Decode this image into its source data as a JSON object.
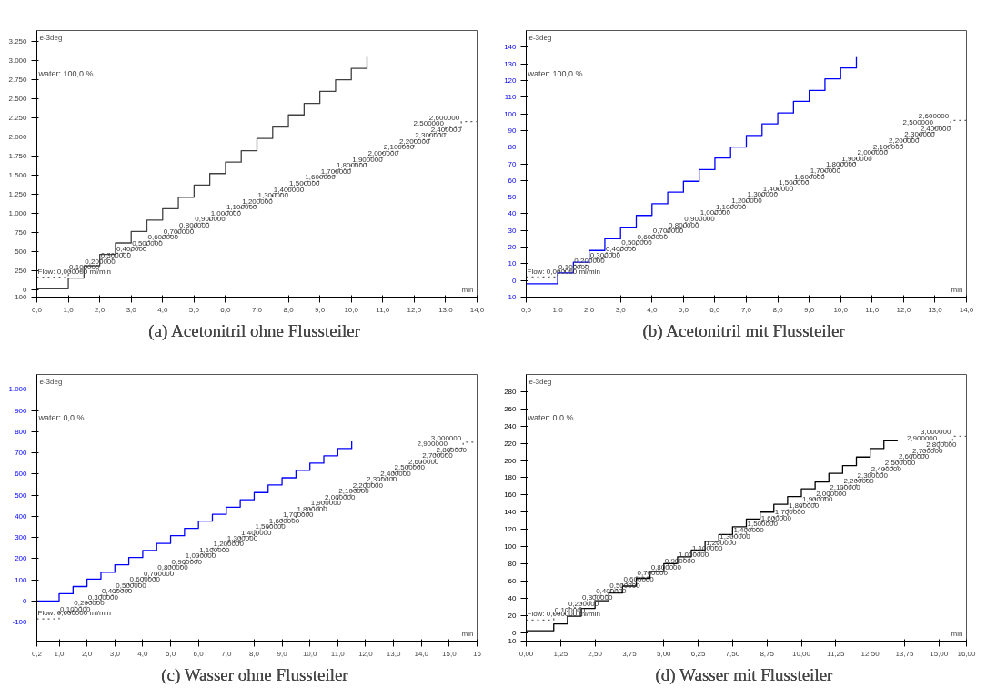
{
  "chart_data": [
    {
      "type": "step",
      "title": "(a)  Acetonitril ohne Flussteiler",
      "xlabel": "min",
      "ylabel": "e-3deg",
      "annotations": [
        "water: 100,0 %"
      ],
      "xlim": [
        0,
        14
      ],
      "ylim": [
        -100,
        3397
      ],
      "xticks": [
        {
          "value": 0,
          "label": "0,0"
        },
        {
          "value": 1,
          "label": "1,0"
        },
        {
          "value": 2,
          "label": "2,0"
        },
        {
          "value": 3,
          "label": "3,0"
        },
        {
          "value": 4,
          "label": "4,0"
        },
        {
          "value": 5,
          "label": "5,0"
        },
        {
          "value": 6,
          "label": "6,0"
        },
        {
          "value": 7,
          "label": "7,0"
        },
        {
          "value": 8,
          "label": "8,0"
        },
        {
          "value": 9,
          "label": "9,0"
        },
        {
          "value": 10,
          "label": "10,0"
        },
        {
          "value": 11,
          "label": "11,0"
        },
        {
          "value": 12,
          "label": "12,0"
        },
        {
          "value": 13,
          "label": "13,0"
        },
        {
          "value": 14,
          "label": "14,0"
        }
      ],
      "yticks": [
        -100,
        0,
        250,
        500,
        750,
        {
          "value": 1000,
          "label": "1.000"
        },
        {
          "value": 1250,
          "label": "1.250"
        },
        {
          "value": 1500,
          "label": "1.500"
        },
        {
          "value": 1750,
          "label": "1.750"
        },
        {
          "value": 2000,
          "label": "2.000"
        },
        {
          "value": 2250,
          "label": "2.250"
        },
        {
          "value": 2500,
          "label": "2.500"
        },
        {
          "value": 2750,
          "label": "2.750"
        },
        {
          "value": 3000,
          "label": "3.000"
        },
        {
          "value": 3250,
          "label": "3.250"
        }
      ],
      "y2lim": [
        -0.331,
        4.12
      ],
      "series": [
        {
          "color": "#404040",
          "x": [
            0,
            1,
            1.5,
            2,
            2.5,
            3,
            3.5,
            4,
            4.5,
            5,
            5.5,
            6,
            6.5,
            7,
            7.5,
            8,
            8.5,
            9,
            9.5,
            10,
            10.5
          ],
          "values": [
            10,
            150,
            310,
            460,
            610,
            760,
            910,
            1060,
            1210,
            1370,
            1520,
            1670,
            1820,
            1980,
            2130,
            2290,
            2440,
            2600,
            2750,
            2900,
            3050
          ]
        },
        {
          "color": "#606060",
          "axis": "y2",
          "line_style": "dotted",
          "x": [
            0,
            1,
            1.5,
            2,
            2.5,
            3,
            3.5,
            4,
            4.5,
            5,
            5.5,
            6,
            6.5,
            7,
            7.5,
            8,
            8.5,
            9,
            9.5,
            10,
            10.5,
            11,
            11.5,
            12,
            12.5,
            13,
            13.5,
            14
          ],
          "values": [
            0,
            0.1,
            0.2,
            0.3,
            0.4,
            0.5,
            0.6,
            0.7,
            0.8,
            0.9,
            1.0,
            1.1,
            1.2,
            1.3,
            1.4,
            1.5,
            1.6,
            1.7,
            1.8,
            1.9,
            2.0,
            2.1,
            2.2,
            2.3,
            2.4,
            2.5,
            2.6,
            2.6
          ],
          "value_labels": [
            "Flow: 0,000000 ml/min",
            "0,100000",
            "0,200000",
            "0,300000",
            "0,400000",
            "0,500000",
            "0,600000",
            "0,700000",
            "0,800000",
            "0,900000",
            "1,000000",
            "1,100000",
            "1,200000",
            "1,300000",
            "1,400000",
            "1,500000",
            "1,600000",
            "1,700000",
            "1,800000",
            "1,900000",
            "2,000000",
            "2,100000",
            "2,200000",
            "2,300000",
            "2,400000",
            "2,500000",
            "2,600000",
            null
          ]
        }
      ]
    },
    {
      "type": "step",
      "title": "(b)  Acetonitril mit Flussteiler",
      "xlabel": "min",
      "ylabel": "e-3deg",
      "annotations": [
        "water: 100,0 %"
      ],
      "xlim": [
        0,
        14
      ],
      "ylim": [
        -10,
        150
      ],
      "xticks": [
        {
          "value": 0,
          "label": "0,0"
        },
        {
          "value": 1,
          "label": "1,0"
        },
        {
          "value": 2,
          "label": "2,0"
        },
        {
          "value": 3,
          "label": "3,0"
        },
        {
          "value": 4,
          "label": "4,0"
        },
        {
          "value": 5,
          "label": "5,0"
        },
        {
          "value": 6,
          "label": "6,0"
        },
        {
          "value": 7,
          "label": "7,0"
        },
        {
          "value": 8,
          "label": "8,0"
        },
        {
          "value": 9,
          "label": "9,0"
        },
        {
          "value": 10,
          "label": "10,0"
        },
        {
          "value": 11,
          "label": "11,0"
        },
        {
          "value": 12,
          "label": "12,0"
        },
        {
          "value": 13,
          "label": "13,0"
        },
        {
          "value": 14,
          "label": "14,0"
        }
      ],
      "yticks": [
        -10,
        0,
        10,
        20,
        30,
        40,
        50,
        60,
        70,
        80,
        90,
        100,
        110,
        120,
        130,
        140
      ],
      "y2lim": [
        -0.332,
        4.094
      ],
      "series": [
        {
          "color": "#0000ff",
          "x": [
            0,
            1,
            1.5,
            2,
            2.5,
            3,
            3.5,
            4,
            4.5,
            5,
            5.5,
            6,
            6.5,
            7,
            7.5,
            8,
            8.5,
            9,
            9.5,
            10,
            10.5
          ],
          "values": [
            -2,
            4.5,
            11,
            18,
            25,
            32,
            39,
            46,
            53,
            59.5,
            66.5,
            73.5,
            80,
            87,
            94,
            100.5,
            107.5,
            114,
            121,
            127.5,
            134
          ]
        },
        {
          "color": "#606060",
          "axis": "y2",
          "line_style": "dotted",
          "x": [
            0,
            1,
            1.5,
            2,
            2.5,
            3,
            3.5,
            4,
            4.5,
            5,
            5.5,
            6,
            6.5,
            7,
            7.5,
            8,
            8.5,
            9,
            9.5,
            10,
            10.5,
            11,
            11.5,
            12,
            12.5,
            13,
            13.5,
            14
          ],
          "values": [
            0,
            0.1,
            0.2,
            0.3,
            0.4,
            0.5,
            0.6,
            0.7,
            0.8,
            0.9,
            1.0,
            1.1,
            1.2,
            1.3,
            1.4,
            1.5,
            1.6,
            1.7,
            1.8,
            1.9,
            2.0,
            2.1,
            2.2,
            2.3,
            2.4,
            2.5,
            2.6,
            2.6
          ],
          "value_labels": [
            "Flow: 0,000000 ml/min",
            "0,100000",
            "0,200000",
            "0,300000",
            "0,400000",
            "0,500000",
            "0,600000",
            "0,700000",
            "0,800000",
            "0,900000",
            "1,000000",
            "1,100000",
            "1,200000",
            "1,300000",
            "1,400000",
            "1,500000",
            "1,600000",
            "1,700000",
            "1,800000",
            "1,900000",
            "2,000000",
            "2,100000",
            "2,200000",
            "2,300000",
            "2,400000",
            "2,500000",
            "2,600000",
            null
          ]
        }
      ]
    },
    {
      "type": "step",
      "title": "(c)  Wasser ohne Flussteiler",
      "xlabel": "min",
      "ylabel": "e-3deg",
      "annotations": [
        "water: 0,0 %"
      ],
      "xlim": [
        0.2,
        16
      ],
      "ylim": [
        -190,
        1070
      ],
      "xticks": [
        {
          "value": 0.2,
          "label": "0,2"
        },
        {
          "value": 1,
          "label": "1,0"
        },
        {
          "value": 2,
          "label": "2,0"
        },
        {
          "value": 3,
          "label": "3,0"
        },
        {
          "value": 4,
          "label": "4,0"
        },
        {
          "value": 5,
          "label": "5,0"
        },
        {
          "value": 6,
          "label": "6,0"
        },
        {
          "value": 7,
          "label": "7,0"
        },
        {
          "value": 8,
          "label": "8,0"
        },
        {
          "value": 9,
          "label": "9,0"
        },
        {
          "value": 10,
          "label": "10,0"
        },
        {
          "value": 11,
          "label": "11,0"
        },
        {
          "value": 12,
          "label": "12,0"
        },
        {
          "value": 13,
          "label": "13,0"
        },
        {
          "value": 14,
          "label": "14,0"
        },
        {
          "value": 15,
          "label": "15,0"
        },
        16
      ],
      "yticks": [
        -100,
        0,
        100,
        200,
        300,
        400,
        500,
        600,
        700,
        800,
        900,
        {
          "value": 1000,
          "label": "1.000"
        }
      ],
      "y2lim": [
        -0.376,
        4.15
      ],
      "series": [
        {
          "color": "#0000ff",
          "x": [
            0.2,
            1,
            1.5,
            2,
            2.5,
            3,
            3.5,
            4,
            4.5,
            5,
            5.5,
            6,
            6.5,
            7,
            7.5,
            8,
            8.5,
            9,
            9.5,
            10,
            10.5,
            11,
            11.5
          ],
          "values": [
            0,
            34,
            68,
            103,
            135,
            171,
            205,
            238,
            272,
            308,
            343,
            377,
            409,
            443,
            478,
            512,
            548,
            582,
            617,
            651,
            686,
            720,
            754
          ]
        },
        {
          "color": "#606060",
          "axis": "y2",
          "line_style": "dotted",
          "x": [
            0.2,
            1,
            1.5,
            2,
            2.5,
            3,
            3.5,
            4,
            4.5,
            5,
            5.5,
            6,
            6.5,
            7,
            7.5,
            8,
            8.5,
            9,
            9.5,
            10,
            10.5,
            11,
            11.5,
            12,
            12.5,
            13,
            13.5,
            14,
            14.5,
            15,
            15.5,
            16
          ],
          "values": [
            0,
            0.1,
            0.2,
            0.3,
            0.4,
            0.5,
            0.6,
            0.7,
            0.8,
            0.9,
            1.0,
            1.1,
            1.2,
            1.3,
            1.4,
            1.5,
            1.6,
            1.7,
            1.8,
            1.9,
            2.0,
            2.1,
            2.2,
            2.3,
            2.4,
            2.5,
            2.6,
            2.7,
            2.8,
            2.9,
            3.0,
            3.0
          ],
          "value_labels": [
            "Flow: 0,000000 ml/min",
            "0,100000",
            "0,200000",
            "0,300000",
            "0,400000",
            "0,500000",
            "0,600000",
            "0,700000",
            "0,800000",
            "0,900000",
            "1,000000",
            "1,100000",
            "1,200000",
            "1,300000",
            "1,400000",
            "1,500000",
            "1,600000",
            "1,700000",
            "1,800000",
            "1,900000",
            "2,000000",
            "2,100000",
            "2,200000",
            "2,300000",
            "2,400000",
            "2,500000",
            "2,600000",
            "2,700000",
            "2,800000",
            "2,900000",
            "3,000000",
            null
          ]
        }
      ]
    },
    {
      "type": "step",
      "title": "(d)  Wasser mit Flussteiler",
      "xlabel": "min",
      "ylabel": "e-3deg",
      "annotations": [
        "water: 0,0 %"
      ],
      "xlim": [
        0,
        16
      ],
      "ylim": [
        -10,
        300
      ],
      "xticks": [
        {
          "value": 0,
          "label": "0,00"
        },
        {
          "value": 1.25,
          "label": "1,25"
        },
        {
          "value": 2.5,
          "label": "2,50"
        },
        {
          "value": 3.75,
          "label": "3,75"
        },
        {
          "value": 5,
          "label": "5,00"
        },
        {
          "value": 6.25,
          "label": "6,25"
        },
        {
          "value": 7.5,
          "label": "7,50"
        },
        {
          "value": 8.75,
          "label": "8,75"
        },
        {
          "value": 10,
          "label": "10,00"
        },
        {
          "value": 11.25,
          "label": "11,25"
        },
        {
          "value": 12.5,
          "label": "12,50"
        },
        {
          "value": 13.75,
          "label": "13,75"
        },
        {
          "value": 15,
          "label": "15,00"
        },
        {
          "value": 16,
          "label": "16,00"
        }
      ],
      "yticks": [
        -10,
        0,
        20,
        40,
        60,
        80,
        100,
        120,
        140,
        160,
        180,
        200,
        220,
        240,
        260,
        280
      ],
      "y2lim": [
        -0.344,
        4.01
      ],
      "series": [
        {
          "color": "#000000",
          "x": [
            0,
            1,
            1.5,
            2,
            2.5,
            3,
            3.5,
            4,
            4.5,
            5,
            5.5,
            6,
            6.5,
            7,
            7.5,
            8,
            8.5,
            9,
            9.5,
            10,
            10.5,
            11,
            11.5,
            12,
            12.5,
            13,
            13.5
          ],
          "values": [
            2,
            10,
            19,
            28,
            37,
            46,
            54,
            63,
            71,
            80,
            88,
            96,
            106,
            114,
            123,
            132,
            140,
            149,
            158,
            167,
            175,
            185,
            194,
            204,
            214,
            223,
            223
          ]
        },
        {
          "color": "#606060",
          "axis": "y2",
          "line_style": "dotted",
          "x": [
            0,
            1,
            1.5,
            2,
            2.5,
            3,
            3.5,
            4,
            4.5,
            5,
            5.5,
            6,
            6.5,
            7,
            7.5,
            8,
            8.5,
            9,
            9.5,
            10,
            10.5,
            11,
            11.5,
            12,
            12.5,
            13,
            13.5,
            14,
            14.5,
            15,
            15.5,
            16
          ],
          "values": [
            0,
            0.1,
            0.2,
            0.3,
            0.4,
            0.5,
            0.6,
            0.7,
            0.8,
            0.9,
            1.0,
            1.1,
            1.2,
            1.3,
            1.4,
            1.5,
            1.6,
            1.7,
            1.8,
            1.9,
            2.0,
            2.1,
            2.2,
            2.3,
            2.4,
            2.5,
            2.6,
            2.7,
            2.8,
            2.9,
            3.0,
            3.0
          ],
          "value_labels": [
            "Flow: 0,000000 ml/min",
            "0,100000",
            "0,200000",
            "0,300000",
            "0,400000",
            "0,500000",
            "0,600000",
            "0,700000",
            "0,800000",
            "0,900000",
            "1,000000",
            "1,100000",
            "1,200000",
            "1,300000",
            "1,400000",
            "1,500000",
            "1,600000",
            "1,700000",
            "1,800000",
            "1,900000",
            "2,000000",
            "2,100000",
            "2,200000",
            "2,300000",
            "2,400000",
            "2,500000",
            "2,600000",
            "2,700000",
            "2,800000",
            "2,900000",
            "3,000000",
            null
          ]
        }
      ]
    }
  ]
}
